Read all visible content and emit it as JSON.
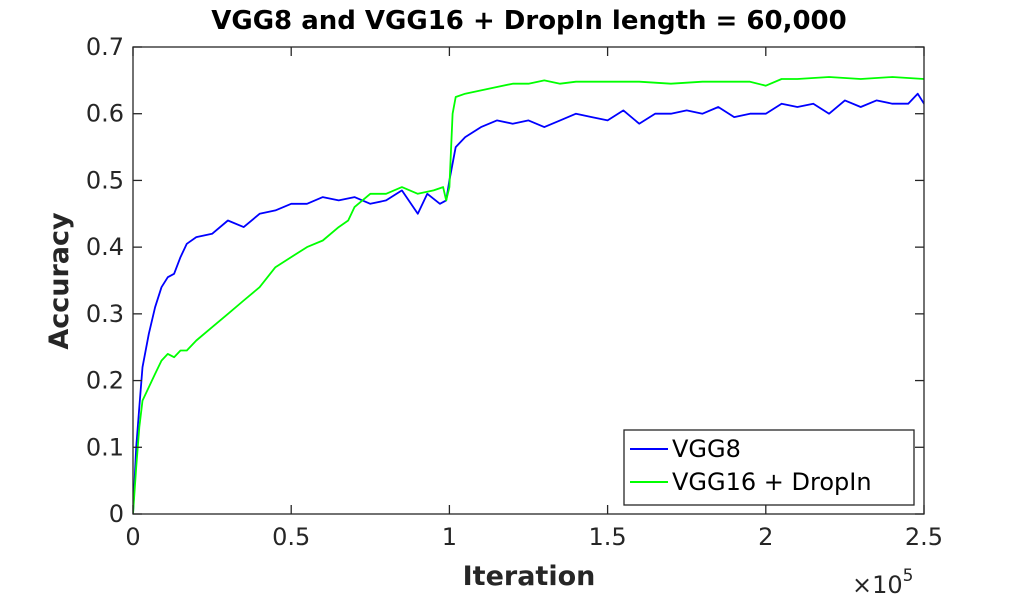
{
  "chart_data": {
    "type": "line",
    "title": "VGG8 and VGG16 + DropIn length = 60,000",
    "xlabel": "Iteration",
    "ylabel": "Accuracy",
    "x_exponent_base": "×10",
    "x_exponent_power": "5",
    "xlim": [
      0,
      2.5
    ],
    "ylim": [
      0,
      0.7
    ],
    "x_ticks": [
      0,
      0.5,
      1,
      1.5,
      2,
      2.5
    ],
    "x_tick_labels": [
      "0",
      "0.5",
      "1",
      "1.5",
      "2",
      "2.5"
    ],
    "y_ticks": [
      0,
      0.1,
      0.2,
      0.3,
      0.4,
      0.5,
      0.6,
      0.7
    ],
    "y_tick_labels": [
      "0",
      "0.1",
      "0.2",
      "0.3",
      "0.4",
      "0.5",
      "0.6",
      "0.7"
    ],
    "grid": false,
    "legend_position": "bottom-right",
    "series": [
      {
        "name": "VGG8",
        "color": "#0000ff",
        "x": [
          0,
          0.01,
          0.02,
          0.03,
          0.05,
          0.07,
          0.09,
          0.11,
          0.13,
          0.15,
          0.17,
          0.2,
          0.25,
          0.3,
          0.35,
          0.4,
          0.45,
          0.5,
          0.55,
          0.6,
          0.65,
          0.7,
          0.75,
          0.8,
          0.85,
          0.9,
          0.93,
          0.97,
          0.99,
          1.0,
          1.02,
          1.05,
          1.1,
          1.15,
          1.2,
          1.25,
          1.3,
          1.35,
          1.4,
          1.45,
          1.5,
          1.55,
          1.6,
          1.65,
          1.7,
          1.75,
          1.8,
          1.85,
          1.9,
          1.95,
          2.0,
          2.05,
          2.1,
          2.15,
          2.2,
          2.25,
          2.3,
          2.35,
          2.4,
          2.45,
          2.48,
          2.5
        ],
        "values": [
          0.0,
          0.1,
          0.16,
          0.22,
          0.27,
          0.31,
          0.34,
          0.355,
          0.36,
          0.385,
          0.405,
          0.415,
          0.42,
          0.44,
          0.43,
          0.45,
          0.455,
          0.465,
          0.465,
          0.475,
          0.47,
          0.475,
          0.465,
          0.47,
          0.485,
          0.45,
          0.48,
          0.465,
          0.47,
          0.5,
          0.55,
          0.565,
          0.58,
          0.59,
          0.585,
          0.59,
          0.58,
          0.59,
          0.6,
          0.595,
          0.59,
          0.605,
          0.585,
          0.6,
          0.6,
          0.605,
          0.6,
          0.61,
          0.595,
          0.6,
          0.6,
          0.615,
          0.61,
          0.615,
          0.6,
          0.62,
          0.61,
          0.62,
          0.615,
          0.615,
          0.63,
          0.615
        ]
      },
      {
        "name": "VGG16 + DropIn",
        "color": "#00ff00",
        "x": [
          0,
          0.01,
          0.02,
          0.03,
          0.05,
          0.07,
          0.09,
          0.11,
          0.13,
          0.15,
          0.17,
          0.2,
          0.25,
          0.3,
          0.35,
          0.4,
          0.45,
          0.5,
          0.55,
          0.6,
          0.65,
          0.68,
          0.7,
          0.75,
          0.8,
          0.85,
          0.9,
          0.95,
          0.98,
          0.99,
          1.0,
          1.01,
          1.02,
          1.05,
          1.1,
          1.15,
          1.2,
          1.25,
          1.3,
          1.35,
          1.4,
          1.5,
          1.6,
          1.7,
          1.8,
          1.9,
          1.95,
          2.0,
          2.05,
          2.1,
          2.2,
          2.3,
          2.4,
          2.5
        ],
        "values": [
          0.0,
          0.07,
          0.13,
          0.17,
          0.19,
          0.21,
          0.23,
          0.24,
          0.235,
          0.245,
          0.245,
          0.26,
          0.28,
          0.3,
          0.32,
          0.34,
          0.37,
          0.385,
          0.4,
          0.41,
          0.43,
          0.44,
          0.46,
          0.48,
          0.48,
          0.49,
          0.48,
          0.485,
          0.49,
          0.47,
          0.49,
          0.6,
          0.625,
          0.63,
          0.635,
          0.64,
          0.645,
          0.645,
          0.65,
          0.645,
          0.648,
          0.648,
          0.648,
          0.645,
          0.648,
          0.648,
          0.648,
          0.642,
          0.652,
          0.652,
          0.655,
          0.652,
          0.655,
          0.652
        ]
      }
    ]
  }
}
